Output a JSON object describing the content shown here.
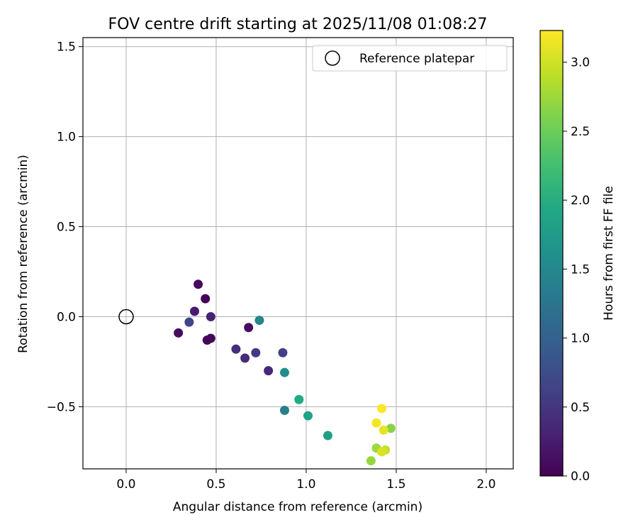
{
  "chart_data": {
    "type": "scatter",
    "title": "FOV centre drift starting at 2025/11/08 01:08:27",
    "xlabel": "Angular distance from reference (arcmin)",
    "ylabel": "Rotation from reference (arcmin)",
    "xlim": [
      -0.24,
      2.15
    ],
    "ylim": [
      -0.845,
      1.55
    ],
    "xticks": [
      0.0,
      0.5,
      1.0,
      1.5,
      2.0
    ],
    "xtick_labels": [
      "0.0",
      "0.5",
      "1.0",
      "1.5",
      "2.0"
    ],
    "yticks": [
      -0.5,
      0.0,
      0.5,
      1.0,
      1.5
    ],
    "ytick_labels": [
      "−0.5",
      "0.0",
      "0.5",
      "1.0",
      "1.5"
    ],
    "grid": true,
    "legend": {
      "position": "upper right",
      "entries": [
        {
          "label": "Reference platepar",
          "marker": "open-circle"
        }
      ]
    },
    "reference_point": {
      "x": 0.0,
      "y": 0.0,
      "label": "Reference platepar"
    },
    "colorbar": {
      "label": "Hours from first FF file",
      "colormap": "viridis",
      "range": [
        0.0,
        3.23
      ],
      "ticks": [
        0.0,
        0.5,
        1.0,
        1.5,
        2.0,
        2.5,
        3.0
      ],
      "tick_labels": [
        "0.0",
        "0.5",
        "1.0",
        "1.5",
        "2.0",
        "2.5",
        "3.0"
      ]
    },
    "points": [
      {
        "x": 0.44,
        "y": 0.1,
        "hours": 0.02
      },
      {
        "x": 0.4,
        "y": 0.18,
        "hours": 0.08
      },
      {
        "x": 0.29,
        "y": -0.09,
        "hours": 0.1
      },
      {
        "x": 0.45,
        "y": -0.13,
        "hours": 0.05
      },
      {
        "x": 0.47,
        "y": -0.12,
        "hours": 0.03
      },
      {
        "x": 0.68,
        "y": -0.06,
        "hours": 0.12
      },
      {
        "x": 0.38,
        "y": 0.03,
        "hours": 0.25
      },
      {
        "x": 0.47,
        "y": 0.0,
        "hours": 0.3
      },
      {
        "x": 0.79,
        "y": -0.3,
        "hours": 0.35
      },
      {
        "x": 0.66,
        "y": -0.23,
        "hours": 0.38
      },
      {
        "x": 0.61,
        "y": -0.18,
        "hours": 0.42
      },
      {
        "x": 0.72,
        "y": -0.2,
        "hours": 0.55
      },
      {
        "x": 0.35,
        "y": -0.03,
        "hours": 0.65
      },
      {
        "x": 0.87,
        "y": -0.2,
        "hours": 0.62
      },
      {
        "x": 0.74,
        "y": -0.02,
        "hours": 1.45
      },
      {
        "x": 0.88,
        "y": -0.31,
        "hours": 1.55
      },
      {
        "x": 0.88,
        "y": -0.52,
        "hours": 1.4
      },
      {
        "x": 1.12,
        "y": -0.66,
        "hours": 1.8
      },
      {
        "x": 1.01,
        "y": -0.55,
        "hours": 1.85
      },
      {
        "x": 0.96,
        "y": -0.46,
        "hours": 1.95
      },
      {
        "x": 1.47,
        "y": -0.62,
        "hours": 2.65
      },
      {
        "x": 1.39,
        "y": -0.73,
        "hours": 2.75
      },
      {
        "x": 1.36,
        "y": -0.8,
        "hours": 2.72
      },
      {
        "x": 1.44,
        "y": -0.74,
        "hours": 2.95
      },
      {
        "x": 1.42,
        "y": -0.75,
        "hours": 3.05
      },
      {
        "x": 1.43,
        "y": -0.63,
        "hours": 3.12
      },
      {
        "x": 1.39,
        "y": -0.59,
        "hours": 3.18
      },
      {
        "x": 1.42,
        "y": -0.51,
        "hours": 3.22
      }
    ]
  }
}
